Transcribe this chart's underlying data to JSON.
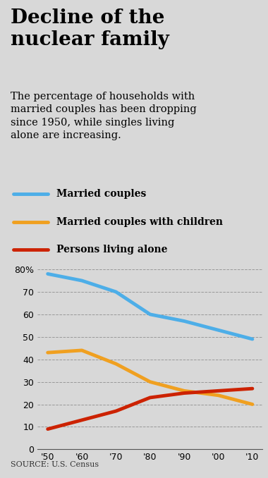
{
  "title": "Decline of the\nnuclear family",
  "subtitle": "The percentage of households with\nmarried couples has been dropping\nsince 1950, while singles living\nalone are increasing.",
  "source": "SOURCE: U.S. Census",
  "years": [
    1950,
    1960,
    1970,
    1980,
    1990,
    2000,
    2010
  ],
  "married_couples": [
    78,
    75,
    70,
    60,
    57,
    53,
    49
  ],
  "married_couples_children": [
    43,
    44,
    38,
    30,
    26,
    24,
    20
  ],
  "persons_alone": [
    9,
    13,
    17,
    23,
    25,
    26,
    27
  ],
  "colors": {
    "married_couples": "#4daee8",
    "married_couples_children": "#f0a020",
    "persons_alone": "#cc2200",
    "background": "#d8d8d8",
    "chart_bg": "#d8d8d8"
  },
  "ylim": [
    0,
    85
  ],
  "yticks": [
    0,
    10,
    20,
    30,
    40,
    50,
    60,
    70,
    80
  ],
  "legend": [
    {
      "label": "Married couples",
      "color": "#4daee8"
    },
    {
      "label": "Married couples with children",
      "color": "#f0a020"
    },
    {
      "label": "Persons living alone",
      "color": "#cc2200"
    }
  ],
  "line_width": 3.5
}
